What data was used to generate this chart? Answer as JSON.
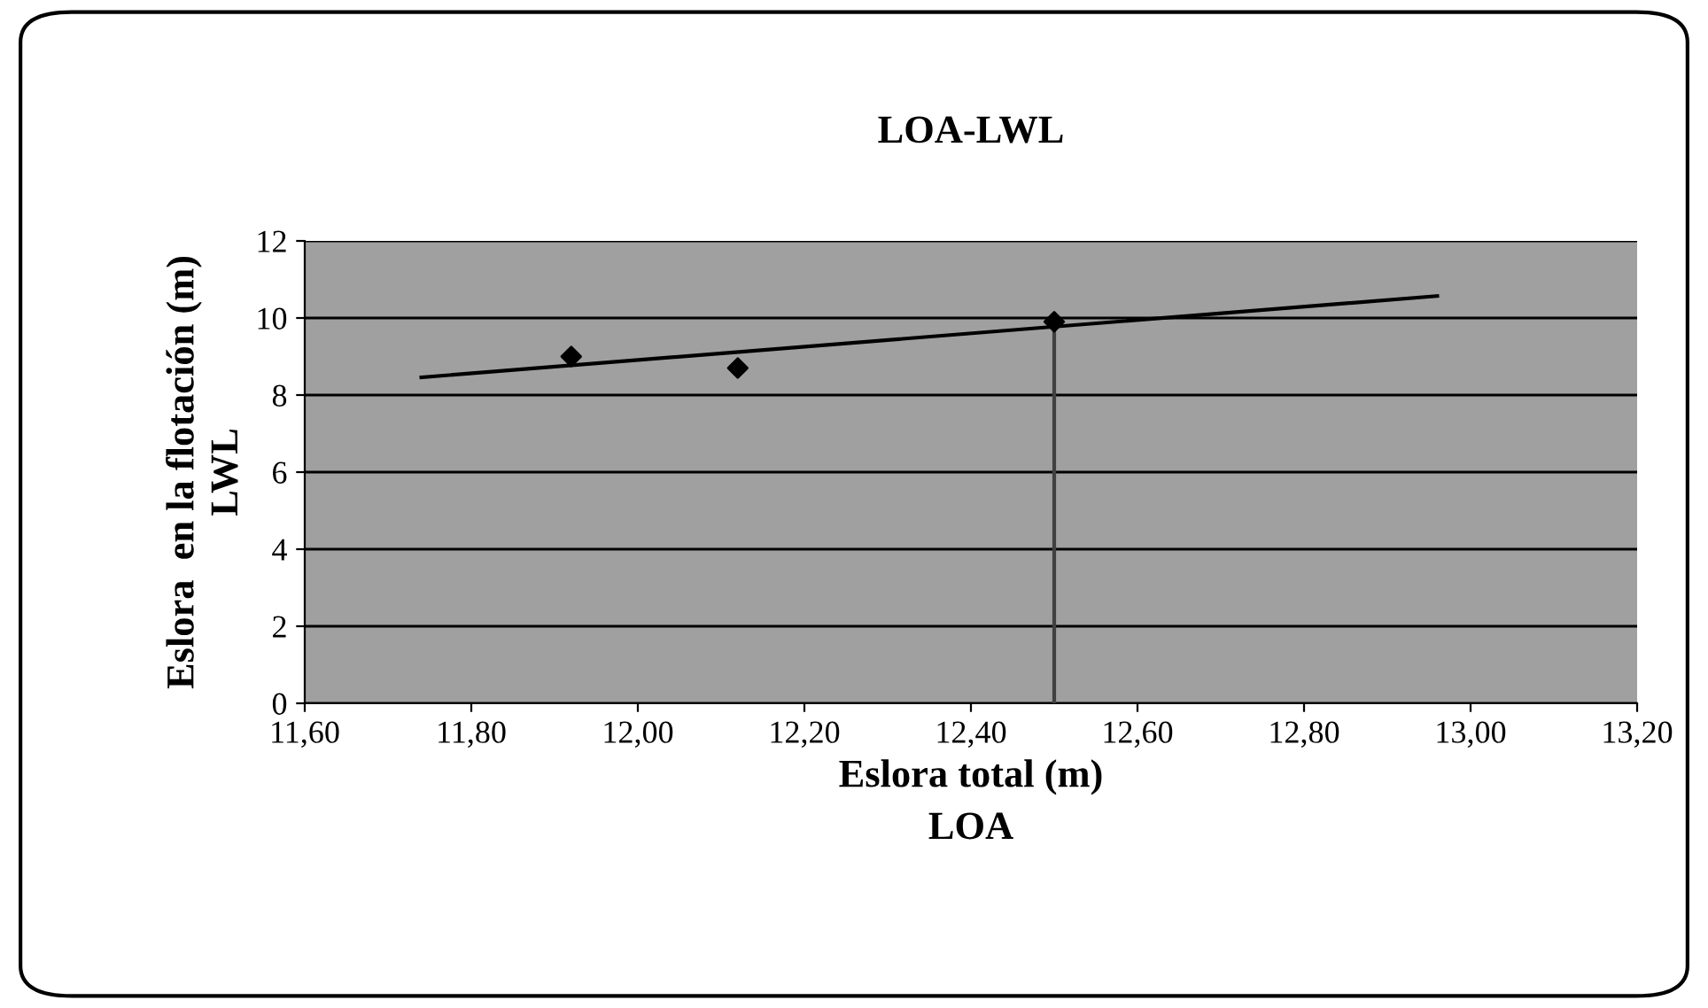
{
  "chart_data": {
    "type": "scatter",
    "title": "LOA-LWL",
    "xlabel": "Eslora total (m)\nLOA",
    "ylabel": "Eslora  en la flotación (m)\nLWL",
    "series": [
      {
        "color": "#000000",
        "marker": "diamond",
        "x": [
          11.92,
          12.12,
          12.5
        ],
        "values": [
          9.0,
          8.7,
          9.9
        ]
      },
      {
        "type": "line",
        "color": "#000000",
        "marker": "none",
        "x": [
          11.74,
          12.96
        ],
        "values": [
          8.46,
          10.57
        ]
      },
      {
        "type": "line",
        "color": "#404040",
        "marker": "none",
        "x": [
          12.5,
          12.5
        ],
        "values": [
          0,
          9.9
        ]
      }
    ],
    "xlim": [
      11.6,
      13.2
    ],
    "xticks": [
      {
        "value": 11.6,
        "label": "11,60"
      },
      {
        "value": 11.8,
        "label": "11,80"
      },
      {
        "value": 12.0,
        "label": "12,00"
      },
      {
        "value": 12.2,
        "label": "12,20"
      },
      {
        "value": 12.4,
        "label": "12,40"
      },
      {
        "value": 12.6,
        "label": "12,60"
      },
      {
        "value": 12.8,
        "label": "12,80"
      },
      {
        "value": 13.0,
        "label": "13,00"
      },
      {
        "value": 13.2,
        "label": "13,20"
      }
    ],
    "ylim": [
      0,
      12
    ],
    "yticks": [
      0,
      2,
      4,
      6,
      8,
      10,
      12
    ],
    "grid": "y",
    "legend": false
  }
}
